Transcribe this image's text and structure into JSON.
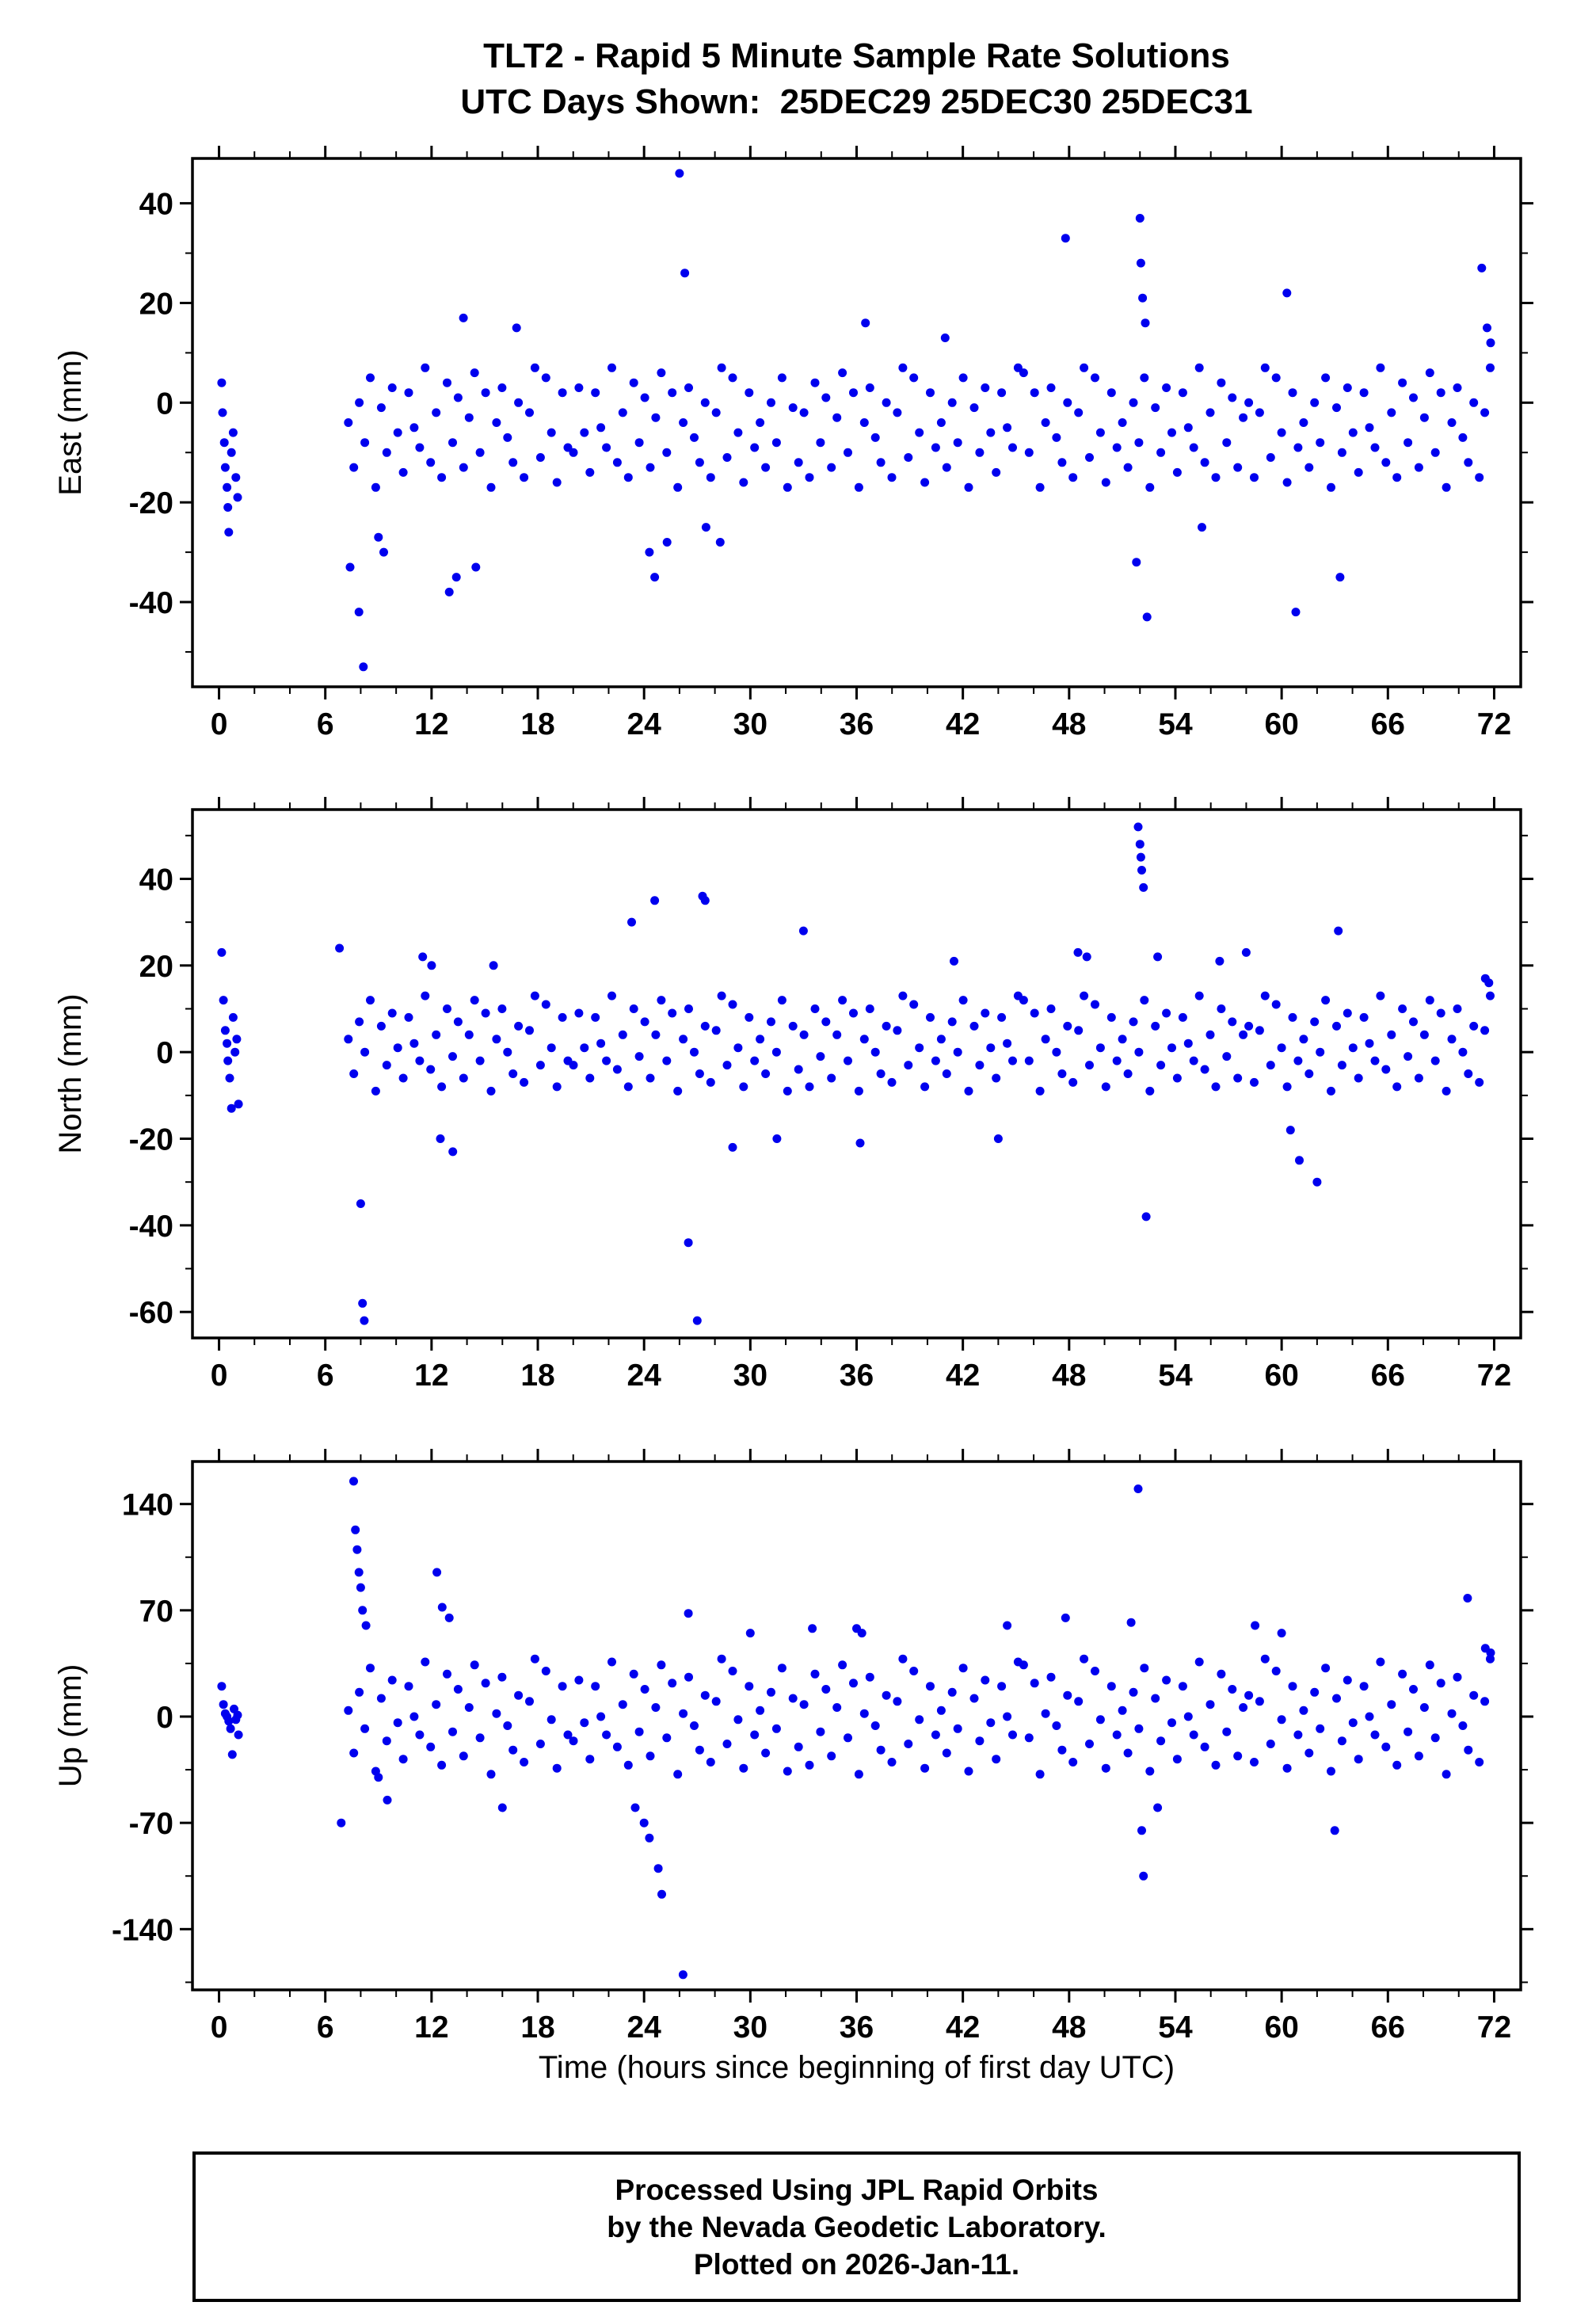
{
  "title": {
    "line1": "TLT2 - Rapid 5 Minute Sample Rate Solutions",
    "line2": "UTC Days Shown:  25DEC29 25DEC30 25DEC31"
  },
  "xlabel": "Time (hours since beginning of first day UTC)",
  "footer": {
    "line1": "Processed Using JPL Rapid Orbits",
    "line2": "by the Nevada Geodetic Laboratory.",
    "line3": "Plotted on 2026-Jan-11."
  },
  "point_color": "#0000ee",
  "frame_color": "#000000",
  "chart_data": [
    {
      "type": "scatter",
      "name": "east",
      "ylabel": "East (mm)",
      "ylim": [
        -57,
        49
      ],
      "yticks": [
        -40,
        -20,
        0,
        20,
        40
      ],
      "y_minor_step": 10,
      "xlim": [
        -1.5,
        73.5
      ],
      "xticks": [
        0,
        6,
        12,
        18,
        24,
        30,
        36,
        42,
        48,
        54,
        60,
        66,
        72
      ],
      "x_minor_step": 2,
      "sampled": {
        "x0": 7.3,
        "dx": 0.31,
        "y": [
          -4,
          -13,
          0,
          -8,
          5,
          -17,
          -1,
          -10,
          3,
          -6,
          -14,
          2,
          -5,
          -9,
          7,
          -12,
          -2,
          -15,
          4,
          -8,
          1,
          -13,
          -3,
          6,
          -10,
          2,
          -17,
          -4,
          3,
          -7,
          -12,
          0,
          -15,
          -2,
          7,
          -11,
          5,
          -6,
          -16,
          2,
          -9,
          -10,
          3,
          -6,
          -14,
          2,
          -5,
          -9,
          7,
          -12,
          -2,
          -15,
          4,
          -8,
          1,
          -13,
          -3,
          6,
          -10,
          2,
          -17,
          -4,
          3,
          -7,
          -12,
          0,
          -15,
          -2,
          7,
          -11,
          5,
          -6,
          -16,
          2,
          -9,
          -4,
          -13,
          0,
          -8,
          5,
          -17,
          -1,
          -12,
          -2,
          -15,
          4,
          -8,
          1,
          -13,
          -3,
          6,
          -10,
          2,
          -17,
          -4,
          3,
          -7,
          -12,
          0,
          -15,
          -2,
          7,
          -11,
          5,
          -6,
          -16,
          2,
          -9,
          -4,
          -13,
          0,
          -8,
          5,
          -17,
          -1,
          -10,
          3,
          -6,
          -14,
          2,
          -5,
          -9,
          7,
          6,
          -10,
          2,
          -17,
          -4,
          3,
          -7,
          -12,
          0,
          -15,
          -2,
          7,
          -11,
          5,
          -6,
          -16,
          2,
          -9,
          -4,
          -13,
          0,
          -8,
          5,
          -17,
          -1,
          -10,
          3,
          -6,
          -14,
          2,
          -5,
          -9,
          7,
          -12,
          -2,
          -15,
          4,
          -8,
          1,
          -13,
          -3,
          0,
          -15,
          -2,
          7,
          -11,
          5,
          -6,
          -16,
          2,
          -9,
          -4,
          -13,
          0,
          -8,
          5,
          -17,
          -1,
          -10,
          3,
          -6,
          -14,
          2,
          -5,
          -9,
          7,
          -12,
          -2,
          -15,
          4,
          -8,
          1,
          -13,
          -3,
          6,
          -10,
          2,
          -17,
          -4,
          3,
          -7,
          -12,
          0,
          -15,
          -2,
          7
        ]
      },
      "extra_points": [
        [
          0.15,
          4
        ],
        [
          0.2,
          -2
        ],
        [
          0.3,
          -8
        ],
        [
          0.35,
          -13
        ],
        [
          0.45,
          -17
        ],
        [
          0.5,
          -21
        ],
        [
          0.55,
          -26
        ],
        [
          0.7,
          -10
        ],
        [
          0.8,
          -6
        ],
        [
          0.95,
          -15
        ],
        [
          1.05,
          -19
        ],
        [
          7.4,
          -33
        ],
        [
          7.9,
          -42
        ],
        [
          8.15,
          -53
        ],
        [
          9.0,
          -27
        ],
        [
          9.3,
          -30
        ],
        [
          13.0,
          -38
        ],
        [
          13.4,
          -35
        ],
        [
          14.5,
          -33
        ],
        [
          13.8,
          17
        ],
        [
          16.8,
          15
        ],
        [
          24.3,
          -30
        ],
        [
          24.6,
          -35
        ],
        [
          25.3,
          -28
        ],
        [
          26.0,
          46
        ],
        [
          26.3,
          26
        ],
        [
          27.5,
          -25
        ],
        [
          28.3,
          -28
        ],
        [
          36.5,
          16
        ],
        [
          41.0,
          13
        ],
        [
          47.8,
          33
        ],
        [
          51.8,
          -32
        ],
        [
          52.0,
          37
        ],
        [
          52.05,
          28
        ],
        [
          52.15,
          21
        ],
        [
          52.3,
          16
        ],
        [
          52.4,
          -43
        ],
        [
          55.5,
          -25
        ],
        [
          60.3,
          22
        ],
        [
          60.8,
          -42
        ],
        [
          63.3,
          -35
        ],
        [
          71.3,
          27
        ],
        [
          71.6,
          15
        ],
        [
          71.8,
          12
        ]
      ]
    },
    {
      "type": "scatter",
      "name": "north",
      "ylabel": "North (mm)",
      "ylim": [
        -66,
        56
      ],
      "yticks": [
        -60,
        -40,
        -20,
        0,
        20,
        40
      ],
      "y_minor_step": 10,
      "xlim": [
        -1.5,
        73.5
      ],
      "xticks": [
        0,
        6,
        12,
        18,
        24,
        30,
        36,
        42,
        48,
        54,
        60,
        66,
        72
      ],
      "x_minor_step": 2,
      "sampled": {
        "x0": 7.3,
        "dx": 0.31,
        "y": [
          3,
          -5,
          7,
          0,
          12,
          -9,
          6,
          -3,
          9,
          1,
          -6,
          8,
          2,
          -2,
          13,
          -4,
          4,
          -8,
          10,
          -1,
          7,
          -6,
          4,
          12,
          -2,
          9,
          -9,
          3,
          10,
          0,
          -5,
          6,
          -7,
          5,
          13,
          -3,
          11,
          1,
          -8,
          8,
          -2,
          -3,
          9,
          1,
          -6,
          8,
          2,
          -2,
          13,
          -4,
          4,
          -8,
          10,
          -1,
          7,
          -6,
          4,
          12,
          -2,
          9,
          -9,
          3,
          10,
          0,
          -5,
          6,
          -7,
          5,
          13,
          -3,
          11,
          1,
          -8,
          8,
          -2,
          3,
          -5,
          7,
          0,
          12,
          -9,
          6,
          -4,
          4,
          -8,
          10,
          -1,
          7,
          -6,
          4,
          12,
          -2,
          9,
          -9,
          3,
          10,
          0,
          -5,
          6,
          -7,
          5,
          13,
          -3,
          11,
          1,
          -8,
          8,
          -2,
          3,
          -5,
          7,
          0,
          12,
          -9,
          6,
          -3,
          9,
          1,
          -6,
          8,
          2,
          -2,
          13,
          12,
          -2,
          9,
          -9,
          3,
          10,
          0,
          -5,
          6,
          -7,
          5,
          13,
          -3,
          11,
          1,
          -8,
          8,
          -2,
          3,
          -5,
          7,
          0,
          12,
          -9,
          6,
          -3,
          9,
          1,
          -6,
          8,
          2,
          -2,
          13,
          -4,
          4,
          -8,
          10,
          -1,
          7,
          -6,
          4,
          6,
          -7,
          5,
          13,
          -3,
          11,
          1,
          -8,
          8,
          -2,
          3,
          -5,
          7,
          0,
          12,
          -9,
          6,
          -3,
          9,
          1,
          -6,
          8,
          2,
          -2,
          13,
          -4,
          4,
          -8,
          10,
          -1,
          7,
          -6,
          4,
          12,
          -2,
          9,
          -9,
          3,
          10,
          0,
          -5,
          6,
          -7,
          5,
          13
        ]
      },
      "extra_points": [
        [
          0.15,
          23
        ],
        [
          0.25,
          12
        ],
        [
          0.35,
          5
        ],
        [
          0.45,
          2
        ],
        [
          0.5,
          -2
        ],
        [
          0.6,
          -6
        ],
        [
          0.7,
          -13
        ],
        [
          0.8,
          8
        ],
        [
          0.9,
          0
        ],
        [
          1.0,
          3
        ],
        [
          1.1,
          -12
        ],
        [
          6.8,
          24
        ],
        [
          8.0,
          -35
        ],
        [
          8.1,
          -58
        ],
        [
          8.2,
          -62
        ],
        [
          11.5,
          22
        ],
        [
          12.0,
          20
        ],
        [
          12.5,
          -20
        ],
        [
          13.2,
          -23
        ],
        [
          15.5,
          20
        ],
        [
          23.3,
          30
        ],
        [
          24.6,
          35
        ],
        [
          26.5,
          -44
        ],
        [
          27.0,
          -62
        ],
        [
          27.3,
          36
        ],
        [
          27.45,
          35
        ],
        [
          29.0,
          -22
        ],
        [
          31.5,
          -20
        ],
        [
          33.0,
          28
        ],
        [
          36.2,
          -21
        ],
        [
          41.5,
          21
        ],
        [
          44.0,
          -20
        ],
        [
          48.5,
          23
        ],
        [
          49.0,
          22
        ],
        [
          51.9,
          52
        ],
        [
          52.0,
          48
        ],
        [
          52.05,
          45
        ],
        [
          52.1,
          42
        ],
        [
          52.2,
          38
        ],
        [
          52.35,
          -38
        ],
        [
          53.0,
          22
        ],
        [
          56.5,
          21
        ],
        [
          58.0,
          23
        ],
        [
          60.5,
          -18
        ],
        [
          61.0,
          -25
        ],
        [
          62.0,
          -30
        ],
        [
          63.2,
          28
        ],
        [
          71.5,
          17
        ],
        [
          71.7,
          16
        ]
      ]
    },
    {
      "type": "scatter",
      "name": "up",
      "ylabel": "Up (mm)",
      "ylim": [
        -180,
        168
      ],
      "yticks": [
        -140,
        -70,
        0,
        70,
        140
      ],
      "y_minor_step": 35,
      "xlim": [
        -1.5,
        73.5
      ],
      "xticks": [
        0,
        6,
        12,
        18,
        24,
        30,
        36,
        42,
        48,
        54,
        60,
        66,
        72
      ],
      "x_minor_step": 2,
      "sampled": {
        "x0": 7.3,
        "dx": 0.31,
        "y": [
          4,
          -24,
          16,
          -8,
          32,
          -36,
          12,
          -16,
          24,
          -4,
          -28,
          20,
          0,
          -12,
          36,
          -20,
          8,
          -32,
          28,
          -10,
          18,
          -26,
          6,
          34,
          -14,
          22,
          -38,
          2,
          26,
          -6,
          -22,
          14,
          -30,
          10,
          38,
          -18,
          30,
          -2,
          -34,
          20,
          -12,
          -16,
          24,
          -4,
          -28,
          20,
          0,
          -12,
          36,
          -20,
          8,
          -32,
          28,
          -10,
          18,
          -26,
          6,
          34,
          -14,
          22,
          -38,
          2,
          26,
          -6,
          -22,
          14,
          -30,
          10,
          38,
          -18,
          30,
          -2,
          -34,
          20,
          -12,
          4,
          -24,
          16,
          -8,
          32,
          -36,
          12,
          -20,
          8,
          -32,
          28,
          -10,
          18,
          -26,
          6,
          34,
          -14,
          22,
          -38,
          2,
          26,
          -6,
          -22,
          14,
          -30,
          10,
          38,
          -18,
          30,
          -2,
          -34,
          20,
          -12,
          4,
          -24,
          16,
          -8,
          32,
          -36,
          12,
          -16,
          24,
          -4,
          -28,
          20,
          0,
          -12,
          36,
          34,
          -14,
          22,
          -38,
          2,
          26,
          -6,
          -22,
          14,
          -30,
          10,
          38,
          -18,
          30,
          -2,
          -34,
          20,
          -12,
          4,
          -24,
          16,
          -8,
          32,
          -36,
          12,
          -16,
          24,
          -4,
          -28,
          20,
          0,
          -12,
          36,
          -20,
          8,
          -32,
          28,
          -10,
          18,
          -26,
          6,
          14,
          -30,
          10,
          38,
          -18,
          30,
          -2,
          -34,
          20,
          -12,
          4,
          -24,
          16,
          -8,
          32,
          -36,
          12,
          -16,
          24,
          -4,
          -28,
          20,
          0,
          -12,
          36,
          -20,
          8,
          -32,
          28,
          -10,
          18,
          -26,
          6,
          34,
          -14,
          22,
          -38,
          2,
          26,
          -6,
          -22,
          14,
          -30,
          10,
          38
        ]
      },
      "extra_points": [
        [
          0.15,
          20
        ],
        [
          0.25,
          8
        ],
        [
          0.35,
          2
        ],
        [
          0.45,
          0
        ],
        [
          0.55,
          -3
        ],
        [
          0.65,
          -8
        ],
        [
          0.75,
          -25
        ],
        [
          0.85,
          5
        ],
        [
          0.95,
          -2
        ],
        [
          1.05,
          1
        ],
        [
          1.1,
          -12
        ],
        [
          6.9,
          -70
        ],
        [
          7.6,
          155
        ],
        [
          7.7,
          123
        ],
        [
          7.8,
          110
        ],
        [
          7.9,
          95
        ],
        [
          8.0,
          85
        ],
        [
          8.1,
          70
        ],
        [
          8.3,
          60
        ],
        [
          9.0,
          -40
        ],
        [
          9.5,
          -55
        ],
        [
          12.3,
          95
        ],
        [
          12.6,
          72
        ],
        [
          13.0,
          65
        ],
        [
          16.0,
          -60
        ],
        [
          23.5,
          -60
        ],
        [
          24.0,
          -70
        ],
        [
          24.3,
          -80
        ],
        [
          24.8,
          -100
        ],
        [
          25.0,
          -117
        ],
        [
          26.2,
          -170
        ],
        [
          26.5,
          68
        ],
        [
          30.0,
          55
        ],
        [
          33.5,
          58
        ],
        [
          36.0,
          58
        ],
        [
          36.3,
          55
        ],
        [
          44.5,
          60
        ],
        [
          47.8,
          65
        ],
        [
          51.5,
          62
        ],
        [
          51.9,
          150
        ],
        [
          52.1,
          -75
        ],
        [
          52.2,
          -105
        ],
        [
          53.0,
          -60
        ],
        [
          58.5,
          60
        ],
        [
          60.0,
          55
        ],
        [
          63.0,
          -75
        ],
        [
          70.5,
          78
        ],
        [
          71.5,
          45
        ],
        [
          71.8,
          42
        ]
      ]
    }
  ]
}
